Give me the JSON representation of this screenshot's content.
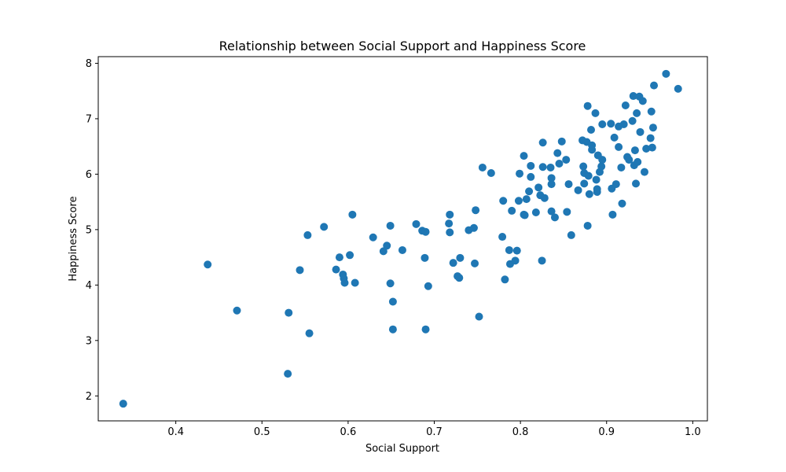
{
  "chart_data": {
    "type": "scatter",
    "title": "Relationship between Social Support and Happiness Score",
    "xlabel": "Social Support",
    "ylabel": "Happiness Score",
    "xlim": [
      0.31,
      1.017
    ],
    "ylim": [
      1.55,
      8.12
    ],
    "xticks": [
      0.4,
      0.5,
      0.6,
      0.7,
      0.8,
      0.9,
      1.0
    ],
    "xtick_labels": [
      "0.4",
      "0.5",
      "0.6",
      "0.7",
      "0.8",
      "0.9",
      "1.0"
    ],
    "yticks": [
      2,
      3,
      4,
      5,
      6,
      7,
      8
    ],
    "ytick_labels": [
      "2",
      "3",
      "4",
      "5",
      "6",
      "7",
      "8"
    ],
    "grid": false,
    "marker_color": "#1f77b4",
    "points": [
      [
        0.339,
        1.86
      ],
      [
        0.437,
        4.37
      ],
      [
        0.471,
        3.54
      ],
      [
        0.531,
        3.5
      ],
      [
        0.53,
        2.4
      ],
      [
        0.544,
        4.27
      ],
      [
        0.553,
        4.9
      ],
      [
        0.555,
        3.13
      ],
      [
        0.572,
        5.05
      ],
      [
        0.586,
        4.28
      ],
      [
        0.59,
        4.5
      ],
      [
        0.594,
        4.19
      ],
      [
        0.595,
        4.12
      ],
      [
        0.596,
        4.04
      ],
      [
        0.602,
        4.54
      ],
      [
        0.605,
        5.27
      ],
      [
        0.608,
        4.04
      ],
      [
        0.629,
        4.86
      ],
      [
        0.641,
        4.61
      ],
      [
        0.645,
        4.71
      ],
      [
        0.649,
        5.07
      ],
      [
        0.649,
        4.03
      ],
      [
        0.652,
        3.7
      ],
      [
        0.652,
        3.2
      ],
      [
        0.663,
        4.63
      ],
      [
        0.679,
        5.1
      ],
      [
        0.686,
        4.98
      ],
      [
        0.689,
        4.49
      ],
      [
        0.69,
        4.96
      ],
      [
        0.69,
        3.2
      ],
      [
        0.693,
        3.98
      ],
      [
        0.717,
        5.11
      ],
      [
        0.718,
        5.27
      ],
      [
        0.718,
        4.95
      ],
      [
        0.722,
        4.4
      ],
      [
        0.727,
        4.16
      ],
      [
        0.729,
        4.13
      ],
      [
        0.73,
        4.49
      ],
      [
        0.74,
        4.99
      ],
      [
        0.746,
        5.03
      ],
      [
        0.747,
        4.39
      ],
      [
        0.748,
        5.35
      ],
      [
        0.752,
        3.43
      ],
      [
        0.756,
        6.12
      ],
      [
        0.766,
        6.02
      ],
      [
        0.779,
        4.87
      ],
      [
        0.78,
        5.52
      ],
      [
        0.782,
        4.1
      ],
      [
        0.787,
        4.63
      ],
      [
        0.788,
        4.38
      ],
      [
        0.79,
        5.34
      ],
      [
        0.794,
        4.44
      ],
      [
        0.796,
        4.62
      ],
      [
        0.798,
        5.52
      ],
      [
        0.799,
        6.01
      ],
      [
        0.804,
        6.33
      ],
      [
        0.804,
        5.27
      ],
      [
        0.805,
        5.26
      ],
      [
        0.807,
        5.55
      ],
      [
        0.81,
        5.69
      ],
      [
        0.812,
        6.15
      ],
      [
        0.812,
        5.95
      ],
      [
        0.818,
        5.31
      ],
      [
        0.821,
        5.76
      ],
      [
        0.823,
        5.62
      ],
      [
        0.825,
        4.44
      ],
      [
        0.826,
        6.57
      ],
      [
        0.826,
        6.13
      ],
      [
        0.828,
        5.57
      ],
      [
        0.835,
        6.12
      ],
      [
        0.836,
        5.93
      ],
      [
        0.836,
        5.82
      ],
      [
        0.836,
        5.33
      ],
      [
        0.84,
        5.22
      ],
      [
        0.843,
        6.38
      ],
      [
        0.845,
        6.19
      ],
      [
        0.848,
        6.59
      ],
      [
        0.853,
        6.26
      ],
      [
        0.854,
        5.32
      ],
      [
        0.856,
        5.82
      ],
      [
        0.859,
        4.9
      ],
      [
        0.867,
        5.71
      ],
      [
        0.872,
        6.61
      ],
      [
        0.873,
        6.14
      ],
      [
        0.874,
        6.02
      ],
      [
        0.874,
        5.83
      ],
      [
        0.877,
        6.58
      ],
      [
        0.878,
        7.23
      ],
      [
        0.878,
        5.07
      ],
      [
        0.879,
        5.97
      ],
      [
        0.88,
        5.64
      ],
      [
        0.882,
        6.8
      ],
      [
        0.883,
        6.52
      ],
      [
        0.883,
        6.44
      ],
      [
        0.887,
        7.1
      ],
      [
        0.888,
        5.9
      ],
      [
        0.889,
        5.68
      ],
      [
        0.889,
        5.73
      ],
      [
        0.89,
        6.34
      ],
      [
        0.892,
        6.04
      ],
      [
        0.894,
        6.14
      ],
      [
        0.895,
        6.26
      ],
      [
        0.895,
        6.9
      ],
      [
        0.905,
        6.91
      ],
      [
        0.906,
        5.74
      ],
      [
        0.907,
        5.27
      ],
      [
        0.909,
        6.66
      ],
      [
        0.911,
        5.82
      ],
      [
        0.914,
        6.49
      ],
      [
        0.914,
        6.86
      ],
      [
        0.917,
        6.12
      ],
      [
        0.918,
        5.47
      ],
      [
        0.92,
        6.9
      ],
      [
        0.922,
        7.24
      ],
      [
        0.924,
        6.31
      ],
      [
        0.926,
        6.26
      ],
      [
        0.93,
        6.96
      ],
      [
        0.931,
        7.41
      ],
      [
        0.932,
        6.16
      ],
      [
        0.933,
        6.43
      ],
      [
        0.934,
        5.83
      ],
      [
        0.935,
        7.1
      ],
      [
        0.936,
        6.22
      ],
      [
        0.938,
        7.4
      ],
      [
        0.939,
        6.76
      ],
      [
        0.942,
        7.32
      ],
      [
        0.944,
        6.04
      ],
      [
        0.946,
        6.46
      ],
      [
        0.951,
        6.65
      ],
      [
        0.952,
        7.13
      ],
      [
        0.953,
        6.48
      ],
      [
        0.954,
        6.84
      ],
      [
        0.955,
        7.6
      ],
      [
        0.969,
        7.81
      ],
      [
        0.983,
        7.54
      ]
    ]
  }
}
